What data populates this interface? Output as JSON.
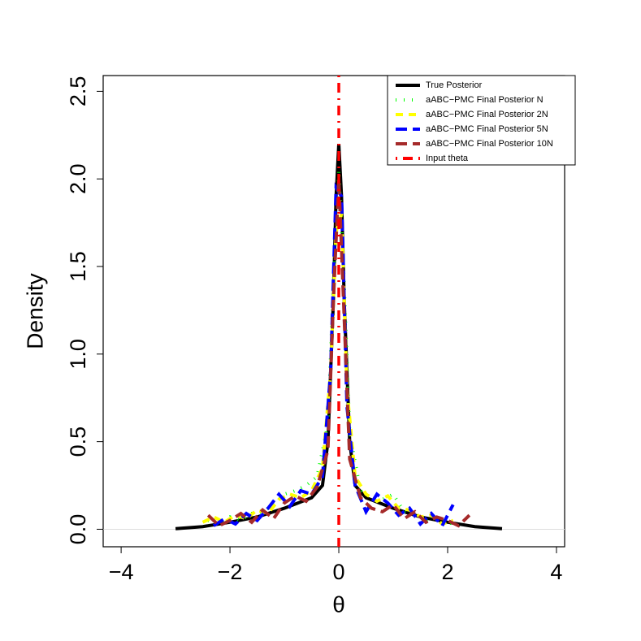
{
  "chart_data": {
    "type": "line",
    "x_label": "θ",
    "y_label": "Density",
    "xlim": [
      -4.33,
      4.15
    ],
    "ylim": [
      -0.1,
      2.59
    ],
    "xticks": [
      {
        "value": -4,
        "label": "−4"
      },
      {
        "value": -2,
        "label": "−2"
      },
      0,
      2,
      4
    ],
    "yticks": [
      {
        "value": 0,
        "label": "0.0"
      },
      0.5,
      {
        "value": 1,
        "label": "1.0"
      },
      1.5,
      {
        "value": 2,
        "label": "2.0"
      },
      2.5
    ],
    "legend": "top-right",
    "series": [
      {
        "name": "True Posterior",
        "color": "#000000",
        "linestyle": "solid",
        "x": [
          -3,
          -2.5,
          -2,
          -1.5,
          -1,
          -0.5,
          -0.3,
          -0.2,
          -0.1,
          -0.05,
          0,
          0.05,
          0.1,
          0.2,
          0.3,
          0.5,
          1,
          1.5,
          2,
          2.5,
          3
        ],
        "values": [
          0.003,
          0.015,
          0.04,
          0.07,
          0.12,
          0.18,
          0.25,
          0.5,
          1.3,
          1.9,
          2.2,
          1.9,
          1.3,
          0.5,
          0.25,
          0.18,
          0.12,
          0.07,
          0.04,
          0.015,
          0.003
        ]
      },
      {
        "name": "aABC−PMC Final Posterior N",
        "color": "#00ff00",
        "linestyle": "dotted",
        "x": [
          -2.4,
          -2.2,
          -2,
          -1.8,
          -1.6,
          -1.4,
          -1.2,
          -1,
          -0.8,
          -0.6,
          -0.4,
          -0.2,
          -0.1,
          0,
          0.1,
          0.2,
          0.4,
          0.6,
          0.8,
          1,
          1.2,
          1.4,
          1.6,
          1.8,
          2,
          2.2
        ],
        "values": [
          0.05,
          0.03,
          0.07,
          0.05,
          0.09,
          0.1,
          0.14,
          0.2,
          0.22,
          0.25,
          0.3,
          0.6,
          1.4,
          2.05,
          1.4,
          0.55,
          0.22,
          0.18,
          0.17,
          0.2,
          0.1,
          0.09,
          0.05,
          0.06,
          0.04,
          0.02
        ]
      },
      {
        "name": "aABC−PMC Final Posterior 2N",
        "color": "#ffff00",
        "linestyle": "dashed",
        "x": [
          -2.5,
          -2.3,
          -2.1,
          -1.9,
          -1.7,
          -1.5,
          -1.3,
          -1.1,
          -0.9,
          -0.7,
          -0.5,
          -0.3,
          -0.15,
          -0.05,
          0.05,
          0.15,
          0.3,
          0.5,
          0.7,
          0.9,
          1.1,
          1.3,
          1.5,
          1.7,
          1.9,
          2.1
        ],
        "values": [
          0.04,
          0.07,
          0.04,
          0.08,
          0.06,
          0.11,
          0.09,
          0.17,
          0.2,
          0.18,
          0.22,
          0.35,
          0.9,
          1.7,
          1.8,
          0.8,
          0.3,
          0.2,
          0.16,
          0.19,
          0.12,
          0.11,
          0.07,
          0.08,
          0.03,
          0.05
        ]
      },
      {
        "name": "aABC−PMC Final Posterior 5N",
        "color": "#0000ff",
        "linestyle": "longdash",
        "x": [
          -2.3,
          -2.1,
          -1.9,
          -1.7,
          -1.5,
          -1.3,
          -1.1,
          -0.9,
          -0.7,
          -0.5,
          -0.3,
          -0.15,
          -0.05,
          0.05,
          0.15,
          0.3,
          0.5,
          0.7,
          0.9,
          1.1,
          1.3,
          1.5,
          1.7,
          1.9,
          2.1
        ],
        "values": [
          0.02,
          0.06,
          0.03,
          0.09,
          0.05,
          0.12,
          0.2,
          0.13,
          0.22,
          0.2,
          0.3,
          0.9,
          1.95,
          1.9,
          0.7,
          0.25,
          0.1,
          0.2,
          0.15,
          0.08,
          0.12,
          0.03,
          0.09,
          0.02,
          0.14
        ]
      },
      {
        "name": "aABC−PMC Final Posterior 10N",
        "color": "#a52a2a",
        "linestyle": "longdash",
        "x": [
          -2.4,
          -2.2,
          -2,
          -1.8,
          -1.6,
          -1.4,
          -1.2,
          -1,
          -0.8,
          -0.6,
          -0.4,
          -0.2,
          -0.1,
          0,
          0.1,
          0.2,
          0.4,
          0.6,
          0.8,
          1,
          1.2,
          1.4,
          1.6,
          1.8,
          2,
          2.2,
          2.4
        ],
        "values": [
          0.08,
          0.02,
          0.05,
          0.09,
          0.04,
          0.11,
          0.06,
          0.15,
          0.19,
          0.16,
          0.24,
          0.45,
          1.3,
          2.0,
          1.2,
          0.4,
          0.18,
          0.12,
          0.1,
          0.14,
          0.06,
          0.1,
          0.04,
          0.07,
          0.05,
          0.02,
          0.08
        ]
      }
    ],
    "vline": {
      "name": "Input theta",
      "color": "#ff0000",
      "linestyle": "dotdash",
      "x": 0
    }
  }
}
